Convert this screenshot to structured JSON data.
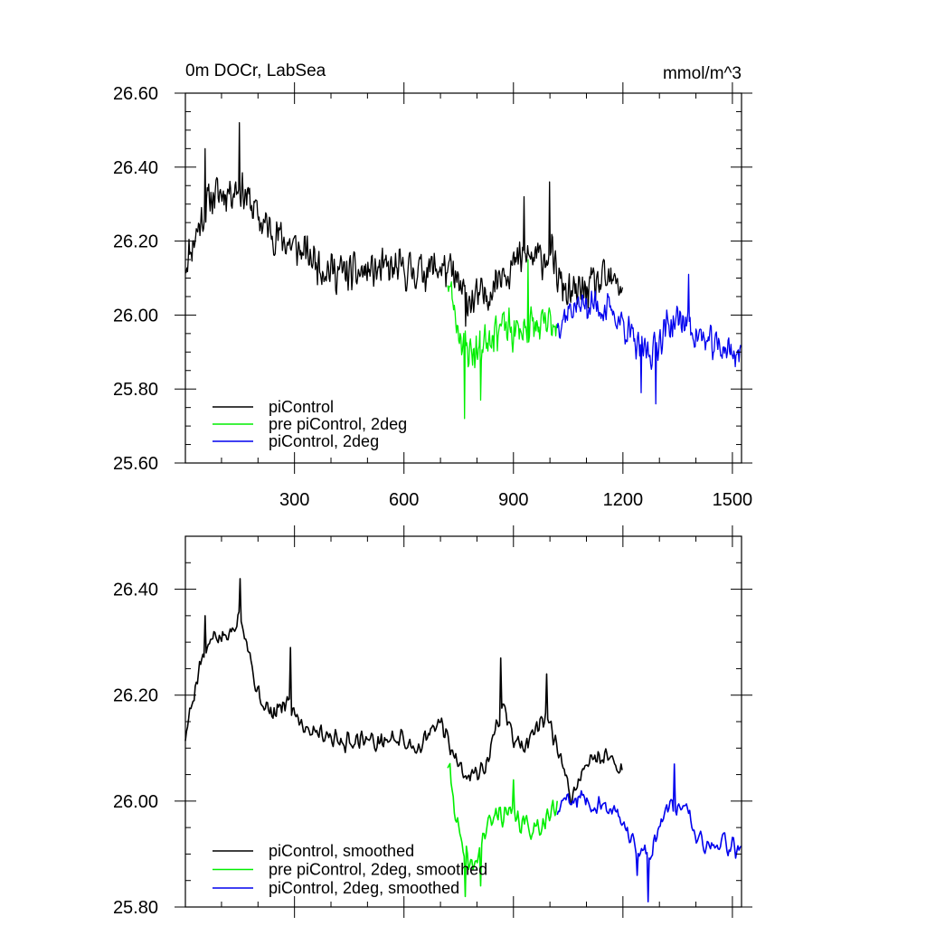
{
  "figure": {
    "title_left": "0m DOCr, LabSea",
    "title_right": "mmol/m^3"
  },
  "colors": {
    "piControl": "#000000",
    "pre_piControl_2deg": "#00ee00",
    "piControl_2deg": "#0000ee"
  },
  "chart_data": [
    {
      "type": "line",
      "title": "0m DOCr, LabSea",
      "units": "mmol/m^3",
      "xlim": [
        1,
        1525
      ],
      "ylim": [
        25.6,
        26.6
      ],
      "xticks": [
        300,
        600,
        900,
        1200,
        1500
      ],
      "xtick_labels": [
        "300",
        "600",
        "900",
        "1200",
        "1500"
      ],
      "yticks": [
        25.6,
        25.8,
        26.0,
        26.2,
        26.4,
        26.6
      ],
      "ytick_labels": [
        "25.60",
        "25.80",
        "26.00",
        "26.20",
        "26.40",
        "26.60"
      ],
      "legend_position": "bottom-left",
      "series": [
        {
          "name": "piControl",
          "color": "#000000",
          "x_start": 1,
          "x_end": 1200,
          "trend": [
            [
              1,
              26.14
            ],
            [
              30,
              26.22
            ],
            [
              70,
              26.32
            ],
            [
              100,
              26.33
            ],
            [
              150,
              26.35
            ],
            [
              175,
              26.31
            ],
            [
              210,
              26.25
            ],
            [
              260,
              26.21
            ],
            [
              320,
              26.17
            ],
            [
              400,
              26.12
            ],
            [
              460,
              26.11
            ],
            [
              520,
              26.12
            ],
            [
              580,
              26.12
            ],
            [
              640,
              26.12
            ],
            [
              700,
              26.13
            ],
            [
              730,
              26.11
            ],
            [
              760,
              26.06
            ],
            [
              790,
              26.04
            ],
            [
              820,
              26.05
            ],
            [
              850,
              26.09
            ],
            [
              870,
              26.13
            ],
            [
              900,
              26.13
            ],
            [
              930,
              26.16
            ],
            [
              970,
              26.15
            ],
            [
              1000,
              26.17
            ],
            [
              1030,
              26.08
            ],
            [
              1060,
              26.05
            ],
            [
              1100,
              26.07
            ],
            [
              1150,
              26.09
            ],
            [
              1200,
              26.08
            ]
          ],
          "noise": 0.065,
          "peaks": [
            [
              150,
              26.52
            ],
            [
              1000,
              26.36
            ],
            [
              930,
              26.32
            ],
            [
              55,
              26.45
            ],
            [
              770,
              25.97
            ]
          ],
          "seed": 11
        },
        {
          "name": "pre piControl, 2deg",
          "color": "#00ee00",
          "x_start": 720,
          "x_end": 1020,
          "trend": [
            [
              720,
              26.1
            ],
            [
              745,
              25.98
            ],
            [
              770,
              25.91
            ],
            [
              800,
              25.9
            ],
            [
              830,
              25.95
            ],
            [
              860,
              25.97
            ],
            [
              900,
              25.95
            ],
            [
              940,
              25.97
            ],
            [
              980,
              25.96
            ],
            [
              1020,
              25.99
            ]
          ],
          "noise": 0.07,
          "peaks": [
            [
              767,
              25.72
            ],
            [
              810,
              25.77
            ],
            [
              940,
              26.15
            ]
          ],
          "seed": 23
        },
        {
          "name": "piControl, 2deg",
          "color": "#0000ee",
          "x_start": 1020,
          "x_end": 1525,
          "trend": [
            [
              1020,
              25.98
            ],
            [
              1060,
              26.02
            ],
            [
              1100,
              26.03
            ],
            [
              1150,
              26.02
            ],
            [
              1200,
              25.98
            ],
            [
              1240,
              25.91
            ],
            [
              1280,
              25.9
            ],
            [
              1320,
              25.97
            ],
            [
              1360,
              25.99
            ],
            [
              1400,
              25.95
            ],
            [
              1440,
              25.92
            ],
            [
              1480,
              25.91
            ],
            [
              1525,
              25.89
            ]
          ],
          "noise": 0.055,
          "peaks": [
            [
              1290,
              25.76
            ],
            [
              1250,
              25.79
            ],
            [
              1380,
              26.11
            ]
          ],
          "seed": 37
        }
      ]
    },
    {
      "type": "line",
      "xlim": [
        1,
        1525
      ],
      "ylim": [
        25.8,
        26.5
      ],
      "xticks": [
        300,
        600,
        900,
        1200,
        1500
      ],
      "xtick_labels": [
        "",
        "",
        "",
        "",
        ""
      ],
      "yticks": [
        25.8,
        26.0,
        26.2,
        26.4
      ],
      "ytick_labels": [
        "25.80",
        "26.00",
        "26.20",
        "26.40"
      ],
      "legend_position": "bottom-left",
      "series": [
        {
          "name": "piControl, smoothed",
          "color": "#000000",
          "x_start": 1,
          "x_end": 1200,
          "trend": [
            [
              1,
              26.12
            ],
            [
              40,
              26.26
            ],
            [
              80,
              26.31
            ],
            [
              120,
              26.31
            ],
            [
              150,
              26.36
            ],
            [
              170,
              26.3
            ],
            [
              200,
              26.2
            ],
            [
              240,
              26.16
            ],
            [
              280,
              26.19
            ],
            [
              330,
              26.14
            ],
            [
              380,
              26.13
            ],
            [
              430,
              26.11
            ],
            [
              480,
              26.12
            ],
            [
              530,
              26.11
            ],
            [
              580,
              26.12
            ],
            [
              640,
              26.1
            ],
            [
              700,
              26.15
            ],
            [
              740,
              26.08
            ],
            [
              780,
              26.05
            ],
            [
              820,
              26.06
            ],
            [
              850,
              26.13
            ],
            [
              870,
              26.18
            ],
            [
              900,
              26.12
            ],
            [
              930,
              26.1
            ],
            [
              970,
              26.14
            ],
            [
              1000,
              26.15
            ],
            [
              1030,
              26.07
            ],
            [
              1060,
              26.01
            ],
            [
              1100,
              26.07
            ],
            [
              1150,
              26.09
            ],
            [
              1200,
              26.06
            ]
          ],
          "noise": 0.022,
          "peaks": [
            [
              150,
              26.42
            ],
            [
              865,
              26.27
            ],
            [
              55,
              26.35
            ],
            [
              990,
              26.24
            ],
            [
              290,
              26.29
            ]
          ],
          "seed": 5
        },
        {
          "name": "pre piControl, 2deg, smoothed",
          "color": "#00ee00",
          "x_start": 720,
          "x_end": 1020,
          "trend": [
            [
              720,
              26.07
            ],
            [
              740,
              25.99
            ],
            [
              760,
              25.9
            ],
            [
              790,
              25.87
            ],
            [
              820,
              25.94
            ],
            [
              860,
              25.98
            ],
            [
              900,
              25.97
            ],
            [
              940,
              25.95
            ],
            [
              980,
              25.96
            ],
            [
              1020,
              25.99
            ]
          ],
          "noise": 0.028,
          "peaks": [
            [
              767,
              25.82
            ],
            [
              810,
              25.84
            ],
            [
              900,
              26.04
            ]
          ],
          "seed": 41
        },
        {
          "name": "piControl, 2deg, smoothed",
          "color": "#0000ee",
          "x_start": 1020,
          "x_end": 1525,
          "trend": [
            [
              1020,
              25.98
            ],
            [
              1060,
              26.01
            ],
            [
              1100,
              26.0
            ],
            [
              1150,
              25.99
            ],
            [
              1200,
              25.96
            ],
            [
              1240,
              25.91
            ],
            [
              1270,
              25.9
            ],
            [
              1320,
              25.98
            ],
            [
              1370,
              26.0
            ],
            [
              1400,
              25.94
            ],
            [
              1440,
              25.91
            ],
            [
              1480,
              25.92
            ],
            [
              1525,
              25.9
            ]
          ],
          "noise": 0.022,
          "peaks": [
            [
              1270,
              25.81
            ],
            [
              1340,
              26.07
            ],
            [
              1240,
              25.86
            ]
          ],
          "seed": 59
        }
      ]
    }
  ]
}
